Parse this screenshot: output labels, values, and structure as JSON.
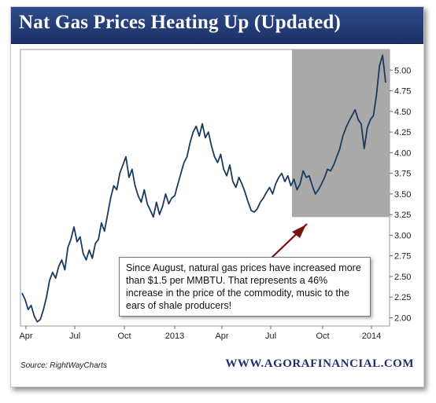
{
  "header": {
    "title": "Nat Gas Prices Heating Up (Updated)"
  },
  "annotation": {
    "text": "Since August, natural gas prices have increased more than $1.5 per MMBTU. That represents a 46% increase in the price of the commodity, music to the ears of shale producers!"
  },
  "footer": {
    "source": "Source: RightWayCharts",
    "website": "WWW.AGORAFINANCIAL.COM"
  },
  "colors": {
    "line": "#1a3a5e",
    "shaded_region": "#a9a9a9",
    "arrow": "#7a1010",
    "title_bar": "#24397a"
  },
  "chart_data": {
    "type": "line",
    "title": "Nat Gas Prices Heating Up (Updated)",
    "xlabel": "",
    "ylabel": "",
    "x_ticks": [
      "Apr",
      "Jul",
      "Oct",
      "2013",
      "Apr",
      "Jul",
      "Oct",
      "2014"
    ],
    "y_ticks": [
      2.0,
      2.25,
      2.5,
      2.75,
      3.0,
      3.25,
      3.5,
      3.75,
      4.0,
      4.25,
      4.5,
      4.75,
      5.0
    ],
    "ylim": [
      1.9,
      5.25
    ],
    "y_axis_side": "right",
    "grid": false,
    "shaded_period": {
      "from": "Aug 2013",
      "to": "Feb 2014"
    },
    "series": [
      {
        "values": [
          2.3,
          2.22,
          2.1,
          2.15,
          2.02,
          1.95,
          1.98,
          2.1,
          2.25,
          2.45,
          2.55,
          2.48,
          2.62,
          2.7,
          2.58,
          2.85,
          2.95,
          3.1,
          2.92,
          2.98,
          2.78,
          2.7,
          2.82,
          2.72,
          2.9,
          2.95,
          3.15,
          3.05,
          3.25,
          3.45,
          3.6,
          3.55,
          3.75,
          3.85,
          3.95,
          3.7,
          3.8,
          3.6,
          3.48,
          3.4,
          3.55,
          3.38,
          3.3,
          3.22,
          3.4,
          3.25,
          3.35,
          3.5,
          3.38,
          3.45,
          3.48,
          3.62,
          3.75,
          3.88,
          3.95,
          4.12,
          4.25,
          4.32,
          4.2,
          4.35,
          4.18,
          4.25,
          4.08,
          3.95,
          3.88,
          3.98,
          3.8,
          3.72,
          3.85,
          3.65,
          3.58,
          3.7,
          3.62,
          3.52,
          3.4,
          3.3,
          3.28,
          3.32,
          3.4,
          3.45,
          3.52,
          3.58,
          3.5,
          3.62,
          3.7,
          3.75,
          3.65,
          3.72,
          3.6,
          3.68,
          3.55,
          3.62,
          3.78,
          3.7,
          3.72,
          3.6,
          3.5,
          3.55,
          3.62,
          3.7,
          3.8,
          3.78,
          3.85,
          3.95,
          4.05,
          4.2,
          4.3,
          4.38,
          4.45,
          4.52,
          4.4,
          4.35,
          4.05,
          4.3,
          4.4,
          4.45,
          4.7,
          5.05,
          5.18,
          4.85
        ]
      }
    ]
  }
}
